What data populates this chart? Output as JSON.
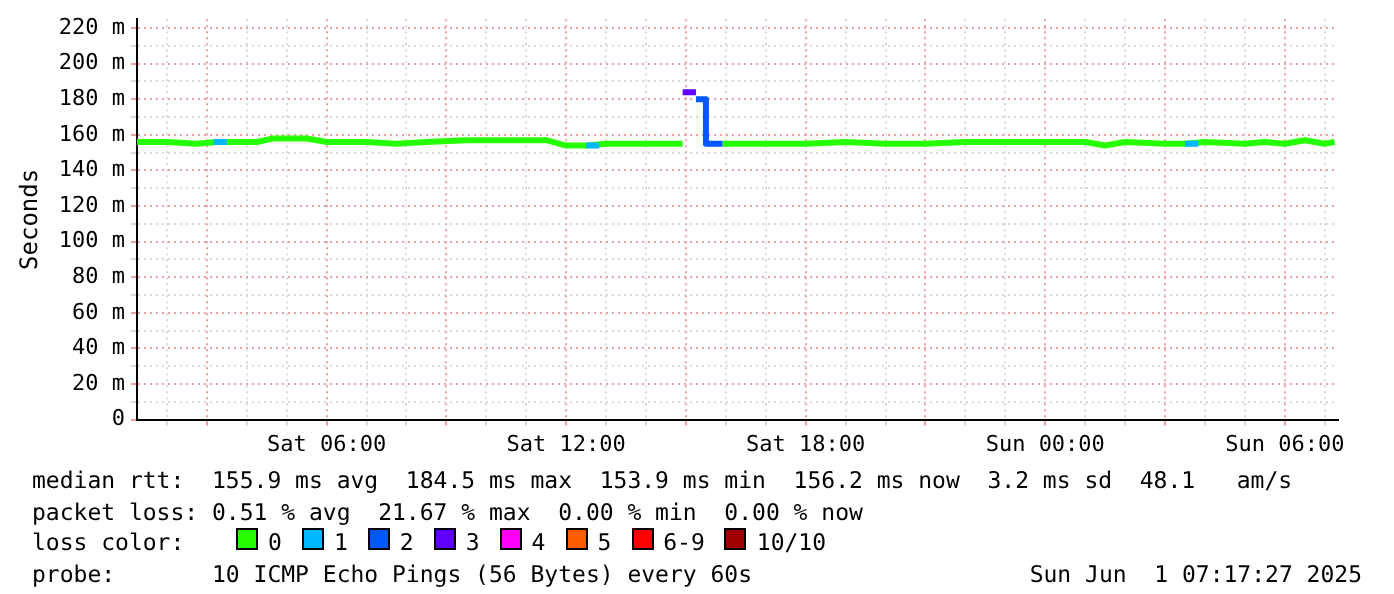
{
  "chart_data": {
    "type": "line",
    "ylabel": "Seconds",
    "xlim": [
      "2025-05-31T01:15",
      "2025-06-01T07:20"
    ],
    "xticks": [
      {
        "value": "2025-05-31T02:00",
        "label": null
      },
      {
        "value": "2025-05-31T03:00",
        "label": null
      },
      {
        "value": "2025-05-31T04:00",
        "label": null
      },
      {
        "value": "2025-05-31T05:00",
        "label": null
      },
      {
        "value": "2025-05-31T06:00",
        "label": "Sat 06:00"
      },
      {
        "value": "2025-05-31T07:00",
        "label": null
      },
      {
        "value": "2025-05-31T08:00",
        "label": null
      },
      {
        "value": "2025-05-31T09:00",
        "label": null
      },
      {
        "value": "2025-05-31T10:00",
        "label": null
      },
      {
        "value": "2025-05-31T11:00",
        "label": null
      },
      {
        "value": "2025-05-31T12:00",
        "label": "Sat 12:00"
      },
      {
        "value": "2025-05-31T13:00",
        "label": null
      },
      {
        "value": "2025-05-31T14:00",
        "label": null
      },
      {
        "value": "2025-05-31T15:00",
        "label": null
      },
      {
        "value": "2025-05-31T16:00",
        "label": null
      },
      {
        "value": "2025-05-31T17:00",
        "label": null
      },
      {
        "value": "2025-05-31T18:00",
        "label": "Sat 18:00"
      },
      {
        "value": "2025-05-31T19:00",
        "label": null
      },
      {
        "value": "2025-05-31T20:00",
        "label": null
      },
      {
        "value": "2025-05-31T21:00",
        "label": null
      },
      {
        "value": "2025-05-31T22:00",
        "label": null
      },
      {
        "value": "2025-05-31T23:00",
        "label": null
      },
      {
        "value": "2025-06-01T00:00",
        "label": "Sun 00:00"
      },
      {
        "value": "2025-06-01T01:00",
        "label": null
      },
      {
        "value": "2025-06-01T02:00",
        "label": null
      },
      {
        "value": "2025-06-01T03:00",
        "label": null
      },
      {
        "value": "2025-06-01T04:00",
        "label": null
      },
      {
        "value": "2025-06-01T05:00",
        "label": null
      },
      {
        "value": "2025-06-01T06:00",
        "label": "Sun 06:00"
      },
      {
        "value": "2025-06-01T07:00",
        "label": null
      }
    ],
    "ylim": [
      0,
      225
    ],
    "yticks": [
      0,
      {
        "value": 10,
        "label": null
      },
      {
        "value": 20,
        "label": "20 m"
      },
      {
        "value": 30,
        "label": null
      },
      {
        "value": 40,
        "label": "40 m"
      },
      {
        "value": 50,
        "label": null
      },
      {
        "value": 60,
        "label": "60 m"
      },
      {
        "value": 70,
        "label": null
      },
      {
        "value": 80,
        "label": "80 m"
      },
      {
        "value": 90,
        "label": null
      },
      {
        "value": 100,
        "label": "100 m"
      },
      {
        "value": 110,
        "label": null
      },
      {
        "value": 120,
        "label": "120 m"
      },
      {
        "value": 130,
        "label": null
      },
      {
        "value": 140,
        "label": "140 m"
      },
      {
        "value": 150,
        "label": null
      },
      {
        "value": 160,
        "label": "160 m"
      },
      {
        "value": 170,
        "label": null
      },
      {
        "value": 180,
        "label": "180 m"
      },
      {
        "value": 190,
        "label": null
      },
      {
        "value": 200,
        "label": "200 m"
      },
      {
        "value": 210,
        "label": null
      },
      {
        "value": 220,
        "label": "220 m"
      }
    ],
    "grid": true,
    "legend": "bottom",
    "legend_title": "loss color:",
    "marker": "none",
    "series": [
      {
        "name": "0",
        "color": "#26ff00",
        "x": [
          "2025-05-31T01:15",
          "2025-05-31T02:00",
          "2025-05-31T02:45",
          "2025-05-31T03:15",
          "2025-05-31T03:45",
          "2025-05-31T04:15",
          "2025-05-31T04:40",
          "2025-05-31T05:30",
          "2025-05-31T06:00",
          "2025-05-31T07:00",
          "2025-05-31T07:45",
          "2025-05-31T08:30",
          "2025-05-31T09:30",
          "2025-05-31T10:30",
          "2025-05-31T11:30",
          "2025-05-31T12:00",
          "2025-05-31T12:30",
          "2025-05-31T13:00",
          "2025-05-31T14:00",
          "2025-05-31T14:55",
          "2025-05-31T15:20",
          "2025-05-31T15:55",
          "2025-05-31T17:00",
          "2025-05-31T18:00",
          "2025-05-31T19:00",
          "2025-05-31T20:00",
          "2025-05-31T21:00",
          "2025-05-31T22:00",
          "2025-05-31T23:00",
          "2025-06-01T00:00",
          "2025-06-01T01:00",
          "2025-06-01T01:30",
          "2025-06-01T02:00",
          "2025-06-01T03:00",
          "2025-06-01T03:30",
          "2025-06-01T04:00",
          "2025-06-01T05:00",
          "2025-06-01T05:30",
          "2025-06-01T06:00",
          "2025-06-01T06:30",
          "2025-06-01T07:00",
          "2025-06-01T07:15"
        ],
        "values": [
          156,
          156,
          155,
          156,
          156,
          156,
          158,
          158,
          156,
          156,
          155,
          156,
          157,
          157,
          157,
          154,
          154,
          155,
          155,
          155,
          null,
          155,
          155,
          155,
          156,
          155,
          155,
          156,
          156,
          156,
          156,
          154,
          156,
          155,
          155,
          156,
          155,
          156,
          155,
          157,
          155,
          156
        ]
      },
      {
        "name": "1",
        "color": "#00b8ff",
        "x": [
          "2025-05-31T03:10",
          "2025-05-31T03:30",
          "2025-05-31T03:35",
          "2025-05-31T12:30",
          "2025-05-31T12:50",
          "2025-05-31T12:55",
          "2025-06-01T03:30",
          "2025-06-01T03:50"
        ],
        "values": [
          156,
          156,
          null,
          154,
          154,
          null,
          155,
          155
        ]
      },
      {
        "name": "2",
        "color": "#0059ff",
        "x": [
          "2025-05-31T15:15",
          "2025-05-31T15:30",
          "2025-05-31T15:30",
          "2025-05-31T15:55"
        ],
        "values": [
          180,
          180,
          155,
          155
        ]
      },
      {
        "name": "3",
        "color": "#5e00ff",
        "x": [
          "2025-05-31T14:55",
          "2025-05-31T15:15"
        ],
        "values": [
          184,
          184
        ]
      },
      {
        "name": "4",
        "color": "#ff00ff"
      },
      {
        "name": "5",
        "color": "#ff5e00"
      },
      {
        "name": "6-9",
        "color": "#ff0000"
      },
      {
        "name": "10/10",
        "color": "#a10000"
      }
    ],
    "annotations": [
      "median rtt:  155.9 ms avg  184.5 ms max  153.9 ms min  156.2 ms now  3.2 ms sd  48.1   am/s",
      "packet loss: 0.51 % avg  21.67 % max  0.00 % min  0.00 % now",
      "probe:       10 ICMP Echo Pings (56 Bytes) every 60s",
      "Sun Jun  1 07:17:27 2025"
    ]
  }
}
